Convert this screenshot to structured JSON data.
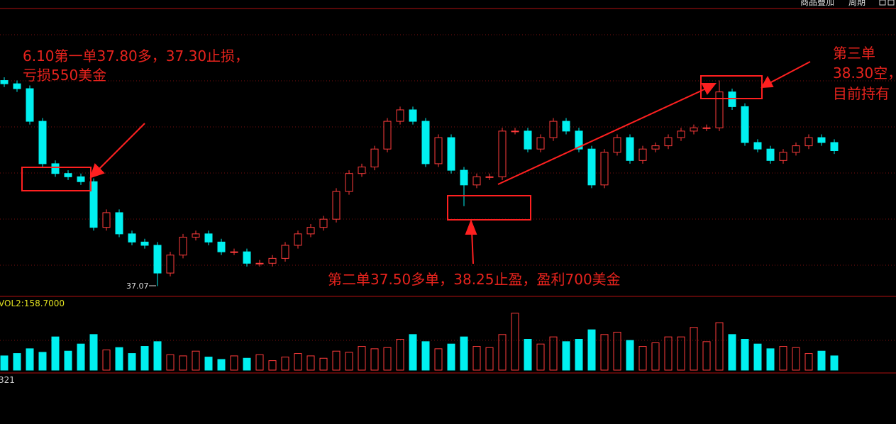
{
  "toolbar": {
    "overlay": "商品叠加",
    "period": "周期"
  },
  "chart_data": {
    "type": "candlestick",
    "open": [
      38.33,
      38.31,
      38.28,
      38.08,
      37.82,
      37.76,
      37.74,
      37.71,
      37.43,
      37.52,
      37.39,
      37.34,
      37.32,
      37.15,
      37.26,
      37.37,
      37.39,
      37.34,
      37.28,
      37.28,
      37.21,
      37.21,
      37.24,
      37.32,
      37.39,
      37.43,
      37.48,
      37.65,
      37.76,
      37.8,
      37.91,
      38.08,
      38.15,
      38.08,
      37.82,
      37.98,
      37.78,
      37.69,
      37.74,
      37.74,
      38.02,
      38.02,
      37.91,
      37.98,
      38.08,
      38.02,
      37.91,
      37.69,
      37.89,
      37.98,
      37.84,
      37.91,
      37.93,
      37.98,
      38.02,
      38.04,
      38.04,
      38.26,
      38.17,
      37.95,
      37.91,
      37.84,
      37.89,
      37.93,
      37.98,
      37.95
    ],
    "high": [
      38.35,
      38.33,
      38.3,
      38.1,
      37.84,
      37.78,
      37.76,
      37.73,
      37.54,
      37.54,
      37.41,
      37.36,
      37.34,
      37.28,
      37.39,
      37.41,
      37.41,
      37.36,
      37.3,
      37.3,
      37.23,
      37.26,
      37.34,
      37.41,
      37.45,
      37.5,
      37.67,
      37.78,
      37.82,
      37.93,
      38.1,
      38.17,
      38.17,
      38.1,
      38.0,
      38.0,
      37.8,
      37.76,
      37.76,
      38.04,
      38.04,
      38.04,
      38.0,
      38.1,
      38.1,
      38.04,
      37.93,
      37.91,
      38.0,
      38.0,
      37.93,
      37.95,
      38.0,
      38.04,
      38.06,
      38.06,
      38.33,
      38.28,
      38.19,
      37.97,
      37.93,
      37.91,
      37.95,
      38.0,
      38.0,
      37.97
    ],
    "low": [
      38.29,
      38.26,
      38.06,
      37.8,
      37.74,
      37.72,
      37.69,
      37.41,
      37.41,
      37.37,
      37.32,
      37.3,
      37.07,
      37.13,
      37.24,
      37.35,
      37.32,
      37.26,
      37.26,
      37.19,
      37.19,
      37.19,
      37.22,
      37.3,
      37.37,
      37.41,
      37.46,
      37.63,
      37.74,
      37.78,
      37.89,
      38.06,
      38.06,
      37.8,
      37.8,
      37.76,
      37.56,
      37.67,
      37.72,
      37.72,
      38.0,
      37.89,
      37.89,
      37.96,
      38.0,
      37.89,
      37.67,
      37.67,
      37.87,
      37.82,
      37.82,
      37.89,
      37.91,
      37.96,
      38.0,
      38.02,
      38.02,
      38.15,
      37.93,
      37.89,
      37.82,
      37.82,
      37.87,
      37.91,
      37.93,
      37.88
    ],
    "close": [
      38.31,
      38.28,
      38.08,
      37.82,
      37.76,
      37.74,
      37.71,
      37.43,
      37.52,
      37.39,
      37.34,
      37.32,
      37.15,
      37.26,
      37.37,
      37.39,
      37.34,
      37.28,
      37.28,
      37.21,
      37.21,
      37.24,
      37.32,
      37.39,
      37.43,
      37.48,
      37.65,
      37.76,
      37.8,
      37.91,
      38.08,
      38.15,
      38.08,
      37.82,
      37.98,
      37.78,
      37.69,
      37.74,
      37.74,
      38.02,
      38.02,
      37.91,
      37.98,
      38.08,
      38.02,
      37.91,
      37.69,
      37.89,
      37.98,
      37.84,
      37.91,
      37.93,
      37.98,
      38.02,
      38.04,
      38.04,
      38.26,
      38.17,
      37.95,
      37.91,
      37.84,
      37.89,
      37.93,
      37.98,
      37.95,
      37.9
    ],
    "ylim": [
      37.02,
      38.78
    ],
    "up_color": "#ff3b3b",
    "down_color": "#00f0f0",
    "low_label": "37.07",
    "annotations": {
      "first_line1": "6.10第一单37.80多，37.30止损，",
      "first_line2": "亏损550美金",
      "second": "第二单37.50多单，38.25止盈，盈利700美金",
      "third_line1": "第三单",
      "third_line2": "38.30空，",
      "third_line3": "目前持有"
    },
    "volume": {
      "label": "VOL2:158.7000",
      "ylim": [
        0,
        260
      ],
      "values": [
        60,
        70,
        90,
        75,
        140,
        80,
        110,
        150,
        85,
        95,
        70,
        100,
        120,
        65,
        60,
        80,
        55,
        45,
        60,
        50,
        65,
        40,
        55,
        70,
        60,
        50,
        80,
        75,
        100,
        90,
        95,
        130,
        150,
        120,
        90,
        110,
        140,
        100,
        95,
        150,
        240,
        130,
        110,
        140,
        120,
        130,
        170,
        150,
        160,
        125,
        100,
        115,
        140,
        140,
        180,
        120,
        200,
        150,
        130,
        110,
        90,
        100,
        95,
        70,
        80,
        60
      ]
    },
    "macd_label": "321"
  }
}
